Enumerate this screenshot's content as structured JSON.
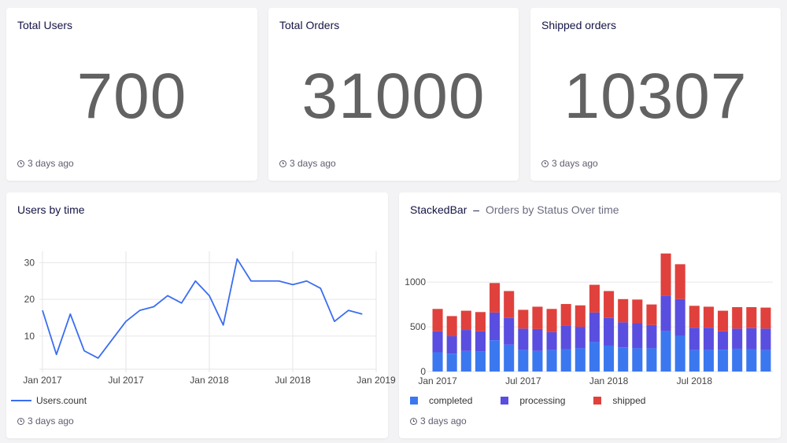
{
  "kpis": [
    {
      "title": "Total Users",
      "value": "700",
      "footer": "3 days ago"
    },
    {
      "title": "Total Orders",
      "value": "31000",
      "footer": "3 days ago"
    },
    {
      "title": "Shipped orders",
      "value": "10307",
      "footer": "3 days ago"
    }
  ],
  "users_chart": {
    "title": "Users by time",
    "footer": "3 days ago",
    "legend": "Users.count"
  },
  "orders_chart": {
    "title_main": "StackedBar",
    "title_sep": "–",
    "title_sub": "Orders by Status Over time",
    "footer": "3 days ago"
  },
  "colors": {
    "line": "#3a6df0",
    "completed": "#3b78f0",
    "processing": "#5a4ee0",
    "shipped": "#e0413c"
  },
  "chart_data": [
    {
      "type": "line",
      "x_ticks": [
        "Jan 2017",
        "Jul 2017",
        "Jan 2018",
        "Jul 2018",
        "Jan 2019"
      ],
      "y_ticks": [
        10,
        20,
        30
      ],
      "ylim": [
        1,
        32
      ],
      "series": [
        {
          "name": "Users.count",
          "x": [
            "2017-01",
            "2017-02",
            "2017-03",
            "2017-04",
            "2017-05",
            "2017-06",
            "2017-07",
            "2017-08",
            "2017-09",
            "2017-10",
            "2017-11",
            "2017-12",
            "2018-01",
            "2018-02",
            "2018-03",
            "2018-04",
            "2018-05",
            "2018-06",
            "2018-07",
            "2018-08",
            "2018-09",
            "2018-10",
            "2018-11",
            "2018-12"
          ],
          "values": [
            17,
            5,
            16,
            6,
            4,
            9,
            14,
            17,
            18,
            21,
            19,
            25,
            21,
            13,
            31,
            25,
            25,
            25,
            24,
            25,
            23,
            14,
            17,
            16
          ]
        }
      ],
      "grid": true,
      "legend_position": "bottom-left"
    },
    {
      "type": "bar",
      "stacked": true,
      "x_ticks": [
        "Jan 2017",
        "Jul 2017",
        "Jan 2018",
        "Jul 2018"
      ],
      "y_ticks": [
        0,
        500,
        1000
      ],
      "ylim": [
        0,
        1300
      ],
      "categories": [
        "2017-01",
        "2017-02",
        "2017-03",
        "2017-04",
        "2017-05",
        "2017-06",
        "2017-07",
        "2017-08",
        "2017-09",
        "2017-10",
        "2017-11",
        "2017-12",
        "2018-01",
        "2018-02",
        "2018-03",
        "2018-04",
        "2018-05",
        "2018-06",
        "2018-07",
        "2018-08",
        "2018-09",
        "2018-10",
        "2018-11",
        "2018-12"
      ],
      "series": [
        {
          "name": "completed",
          "values": [
            215,
            200,
            230,
            225,
            350,
            300,
            240,
            230,
            240,
            250,
            260,
            330,
            290,
            270,
            260,
            260,
            450,
            400,
            240,
            240,
            245,
            255,
            250,
            240
          ]
        },
        {
          "name": "processing",
          "values": [
            235,
            195,
            235,
            225,
            310,
            300,
            240,
            245,
            200,
            265,
            240,
            330,
            310,
            280,
            280,
            260,
            400,
            410,
            250,
            250,
            205,
            225,
            235,
            240
          ]
        },
        {
          "name": "shipped",
          "values": [
            250,
            225,
            215,
            215,
            330,
            300,
            210,
            250,
            260,
            240,
            240,
            310,
            300,
            260,
            265,
            230,
            470,
            390,
            245,
            235,
            230,
            240,
            235,
            235
          ]
        }
      ],
      "grid": true,
      "legend_position": "bottom-left"
    }
  ]
}
